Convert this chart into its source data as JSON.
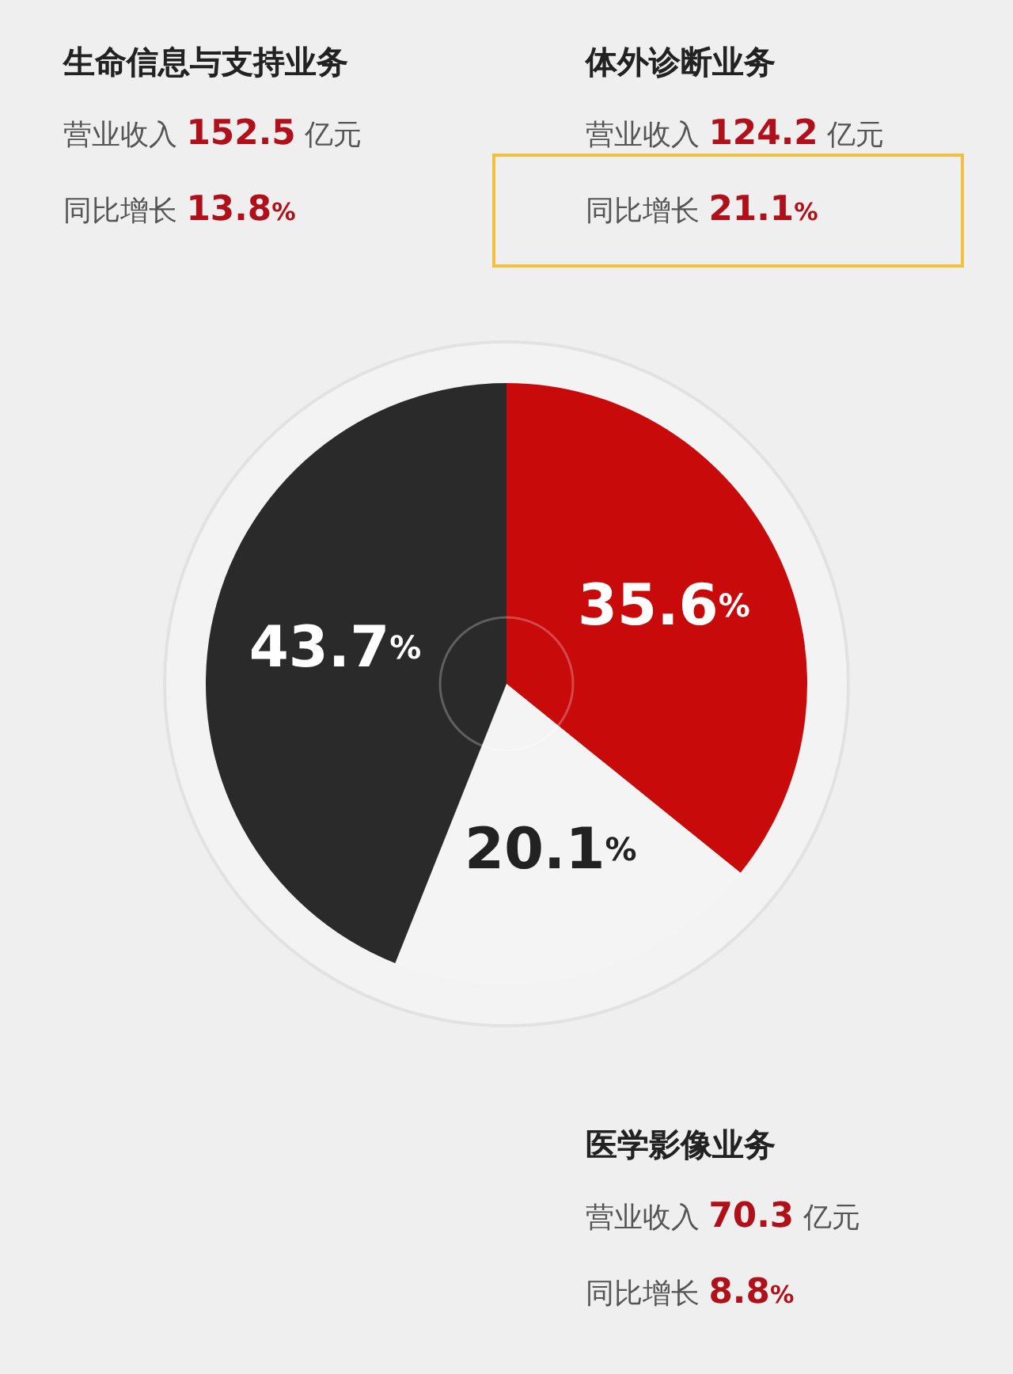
{
  "chart_data": {
    "type": "pie",
    "categories": [
      null,
      null,
      null
    ],
    "values": [
      35.6,
      20.1,
      43.7
    ],
    "colors": [
      "#c80a0a",
      "#f4f4f4",
      "#2a2a2a"
    ],
    "value_labels": [
      "35.6%",
      "20.1%",
      "43.7%"
    ],
    "legend": false,
    "annotations": [
      "生命信息与支持业务",
      "营业收入 152.5 亿元",
      "同比增长 13.8%",
      "体外诊断业务",
      "营业收入 124.2 亿元",
      "同比增长 21.1%",
      "医学影像业务",
      "营业收入 70.3 亿元",
      "同比增长 8.8%"
    ]
  }
}
